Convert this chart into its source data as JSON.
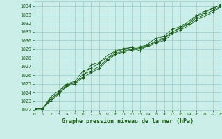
{
  "title": "Graphe pression niveau de la mer (hPa)",
  "bg_color": "#cceee8",
  "grid_color": "#99cccc",
  "line_color": "#1a5c1a",
  "ylim": [
    1022,
    1034.5
  ],
  "xlim": [
    0,
    23
  ],
  "yticks": [
    1022,
    1023,
    1024,
    1025,
    1026,
    1027,
    1028,
    1029,
    1030,
    1031,
    1032,
    1033,
    1034
  ],
  "xticks": [
    0,
    1,
    2,
    3,
    4,
    5,
    6,
    7,
    8,
    9,
    10,
    11,
    12,
    13,
    14,
    15,
    16,
    17,
    18,
    19,
    20,
    21,
    22,
    23
  ],
  "series": [
    [
      1022.1,
      1022.2,
      1023.0,
      1023.8,
      1024.8,
      1025.2,
      1025.8,
      1027.2,
      1027.5,
      1028.0,
      1028.7,
      1029.0,
      1029.2,
      1029.3,
      1029.5,
      1029.8,
      1030.2,
      1031.0,
      1031.5,
      1032.0,
      1032.8,
      1033.2,
      1033.8,
      1034.1
    ],
    [
      1022.1,
      1022.1,
      1023.5,
      1024.2,
      1025.0,
      1025.3,
      1026.5,
      1026.8,
      1027.4,
      1028.3,
      1028.8,
      1029.1,
      1029.2,
      1028.8,
      1029.6,
      1030.3,
      1030.5,
      1031.3,
      1031.6,
      1032.2,
      1032.9,
      1033.4,
      1033.7,
      1034.2
    ],
    [
      1022.1,
      1022.1,
      1023.3,
      1024.0,
      1024.9,
      1025.1,
      1026.1,
      1026.5,
      1027.0,
      1027.9,
      1028.5,
      1028.8,
      1029.0,
      1029.2,
      1029.4,
      1030.0,
      1030.3,
      1031.0,
      1031.4,
      1031.9,
      1032.6,
      1033.0,
      1033.5,
      1034.0
    ],
    [
      1022.1,
      1022.1,
      1023.2,
      1023.9,
      1024.7,
      1025.0,
      1025.7,
      1026.3,
      1026.8,
      1027.7,
      1028.4,
      1028.7,
      1028.9,
      1029.1,
      1029.3,
      1029.7,
      1030.0,
      1030.8,
      1031.2,
      1031.7,
      1032.4,
      1032.8,
      1033.3,
      1033.9
    ]
  ],
  "figsize": [
    3.2,
    2.0
  ],
  "dpi": 100
}
